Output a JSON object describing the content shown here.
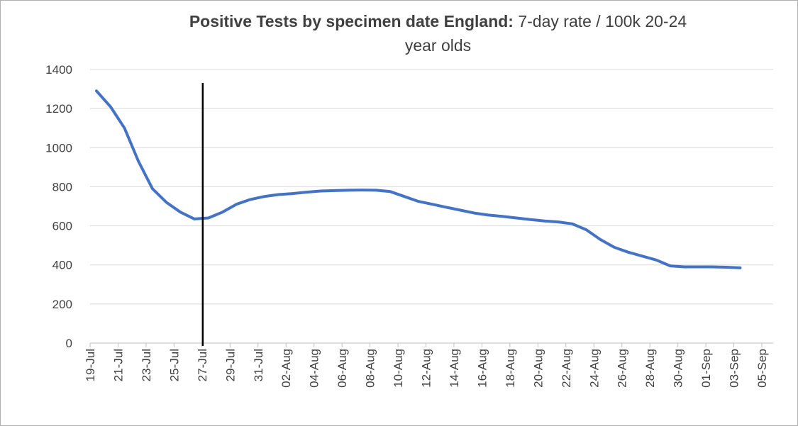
{
  "title": {
    "bold_part": "Positive Tests by specimen date England:",
    "regular_part": "7-day rate / 100k  20-24",
    "line2": "year olds"
  },
  "chart_data": {
    "type": "line",
    "title": "Positive Tests by specimen date England: 7-day rate / 100k  20-24 year olds",
    "xlabel": "",
    "ylabel": "",
    "ylim": [
      0,
      1400
    ],
    "y_ticks": [
      0,
      200,
      400,
      600,
      800,
      1000,
      1200,
      1400
    ],
    "x_tick_labels": [
      "19-Jul",
      "21-Jul",
      "23-Jul",
      "25-Jul",
      "27-Jul",
      "29-Jul",
      "31-Jul",
      "02-Aug",
      "04-Aug",
      "06-Aug",
      "08-Aug",
      "10-Aug",
      "12-Aug",
      "14-Aug",
      "16-Aug",
      "18-Aug",
      "20-Aug",
      "22-Aug",
      "24-Aug",
      "26-Aug",
      "28-Aug",
      "30-Aug",
      "01-Sep",
      "03-Sep",
      "05-Sep"
    ],
    "grid": true,
    "legend": "none",
    "line_color": "#4472c4",
    "marker_line": {
      "x": "27-Jul",
      "color": "#000000"
    },
    "series": [
      {
        "x": [
          "19-Jul",
          "20-Jul",
          "21-Jul",
          "22-Jul",
          "23-Jul",
          "24-Jul",
          "25-Jul",
          "26-Jul",
          "27-Jul",
          "28-Jul",
          "29-Jul",
          "30-Jul",
          "31-Jul",
          "01-Aug",
          "02-Aug",
          "03-Aug",
          "04-Aug",
          "05-Aug",
          "06-Aug",
          "07-Aug",
          "08-Aug",
          "09-Aug",
          "10-Aug",
          "11-Aug",
          "12-Aug",
          "13-Aug",
          "14-Aug",
          "15-Aug",
          "16-Aug",
          "17-Aug",
          "18-Aug",
          "19-Aug",
          "20-Aug",
          "21-Aug",
          "22-Aug",
          "23-Aug",
          "24-Aug",
          "25-Aug",
          "26-Aug",
          "27-Aug",
          "28-Aug",
          "29-Aug",
          "30-Aug",
          "31-Aug",
          "01-Sep",
          "02-Sep",
          "03-Sep"
        ],
        "values": [
          1290,
          1210,
          1100,
          930,
          790,
          720,
          670,
          635,
          640,
          670,
          710,
          735,
          750,
          760,
          765,
          772,
          778,
          780,
          782,
          783,
          782,
          775,
          750,
          725,
          710,
          695,
          680,
          665,
          655,
          648,
          640,
          632,
          625,
          620,
          610,
          580,
          530,
          490,
          465,
          445,
          425,
          395,
          390,
          390,
          390,
          388,
          385
        ]
      }
    ]
  }
}
